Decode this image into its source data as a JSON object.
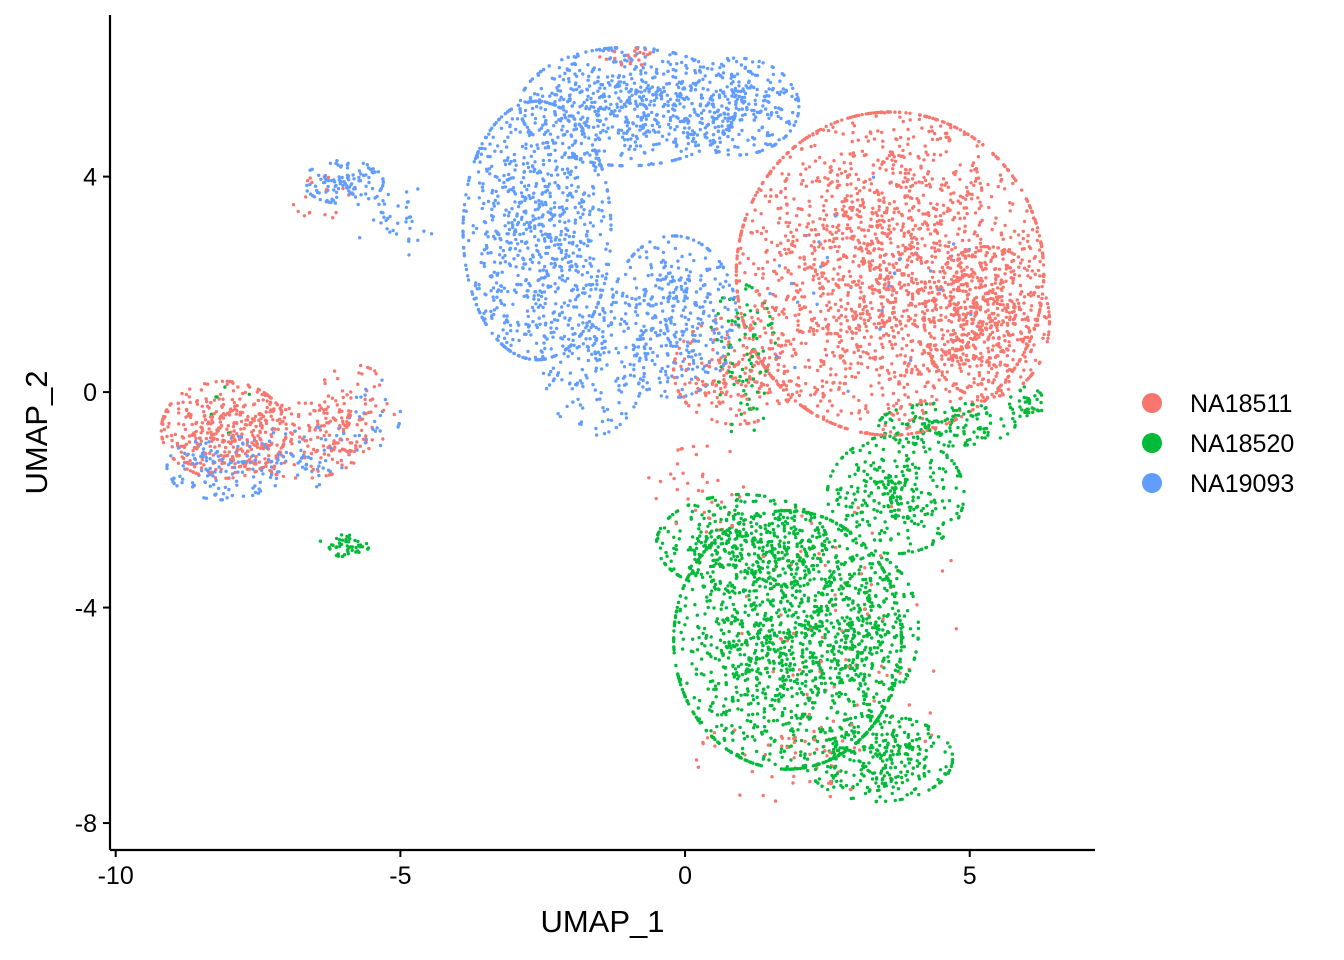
{
  "chart_data": {
    "type": "scatter",
    "title": "",
    "xlabel": "UMAP_1",
    "ylabel": "UMAP_2",
    "xlim": [
      -10.1,
      7.2
    ],
    "ylim": [
      -8.5,
      7.0
    ],
    "x_ticks": [
      -10,
      -5,
      0,
      5
    ],
    "x_tick_labels": [
      "-10",
      "-5",
      "0",
      "5"
    ],
    "y_ticks": [
      -8,
      -4,
      0,
      4
    ],
    "y_tick_labels": [
      "-8",
      "-4",
      "0",
      "4"
    ],
    "grid": false,
    "legend_position": "right",
    "series": [
      {
        "name": "NA18511",
        "color": "#F8766D",
        "regions": [
          {
            "cx": 3.6,
            "cy": 2.2,
            "rx": 2.7,
            "ry": 3.0,
            "n": 2000
          },
          {
            "cx": 5.3,
            "cy": 1.3,
            "rx": 1.1,
            "ry": 1.4,
            "n": 450
          },
          {
            "cx": 0.9,
            "cy": 0.4,
            "rx": 1.1,
            "ry": 1.0,
            "n": 220
          },
          {
            "cx": -8.1,
            "cy": -0.7,
            "rx": 1.1,
            "ry": 0.9,
            "n": 380
          },
          {
            "cx": -6.7,
            "cy": -0.9,
            "rx": 1.1,
            "ry": 0.7,
            "n": 160
          },
          {
            "cx": -5.8,
            "cy": -0.3,
            "rx": 0.7,
            "ry": 0.8,
            "n": 80
          },
          {
            "cx": -6.4,
            "cy": 3.6,
            "rx": 0.5,
            "ry": 0.4,
            "n": 18
          },
          {
            "cx": -1.0,
            "cy": 6.2,
            "rx": 0.5,
            "ry": 0.2,
            "n": 25
          },
          {
            "cx": 3.0,
            "cy": -4.5,
            "rx": 2.0,
            "ry": 2.5,
            "n": 80
          },
          {
            "cx": 1.8,
            "cy": -6.8,
            "rx": 1.6,
            "ry": 0.8,
            "n": 45
          },
          {
            "cx": 0.3,
            "cy": -1.8,
            "rx": 1.0,
            "ry": 0.8,
            "n": 40
          }
        ]
      },
      {
        "name": "NA18520",
        "color": "#00BA38",
        "regions": [
          {
            "cx": 1.8,
            "cy": -4.6,
            "rx": 2.0,
            "ry": 2.4,
            "n": 1350
          },
          {
            "cx": 1.0,
            "cy": -2.8,
            "rx": 1.5,
            "ry": 0.9,
            "n": 380
          },
          {
            "cx": 3.7,
            "cy": -1.9,
            "rx": 1.2,
            "ry": 1.1,
            "n": 320
          },
          {
            "cx": 3.2,
            "cy": -4.4,
            "rx": 0.9,
            "ry": 1.4,
            "n": 230
          },
          {
            "cx": 3.4,
            "cy": -6.8,
            "rx": 1.3,
            "ry": 0.8,
            "n": 320
          },
          {
            "cx": 4.6,
            "cy": -0.6,
            "rx": 1.2,
            "ry": 0.4,
            "n": 140
          },
          {
            "cx": 6.0,
            "cy": -0.2,
            "rx": 0.3,
            "ry": 0.3,
            "n": 40
          },
          {
            "cx": 1.0,
            "cy": 0.6,
            "rx": 0.6,
            "ry": 1.4,
            "n": 90
          },
          {
            "cx": -6.0,
            "cy": -2.85,
            "rx": 0.45,
            "ry": 0.2,
            "n": 50
          },
          {
            "cx": -8.0,
            "cy": -0.4,
            "rx": 0.5,
            "ry": 0.5,
            "n": 6
          }
        ]
      },
      {
        "name": "NA19093",
        "color": "#619CFF",
        "regions": [
          {
            "cx": -2.6,
            "cy": 3.0,
            "rx": 1.3,
            "ry": 2.4,
            "n": 900
          },
          {
            "cx": -1.0,
            "cy": 5.3,
            "rx": 1.9,
            "ry": 1.1,
            "n": 650
          },
          {
            "cx": 0.9,
            "cy": 5.3,
            "rx": 1.1,
            "ry": 0.9,
            "n": 280
          },
          {
            "cx": -0.2,
            "cy": 1.4,
            "rx": 1.1,
            "ry": 1.5,
            "n": 380
          },
          {
            "cx": -1.6,
            "cy": 0.6,
            "rx": 0.9,
            "ry": 1.4,
            "n": 180
          },
          {
            "cx": -6.0,
            "cy": 3.9,
            "rx": 0.7,
            "ry": 0.4,
            "n": 110
          },
          {
            "cx": -5.1,
            "cy": 3.2,
            "rx": 0.7,
            "ry": 0.7,
            "n": 40
          },
          {
            "cx": -8.1,
            "cy": -1.4,
            "rx": 1.0,
            "ry": 0.6,
            "n": 140
          },
          {
            "cx": -6.8,
            "cy": -1.2,
            "rx": 0.9,
            "ry": 0.6,
            "n": 60
          },
          {
            "cx": -5.6,
            "cy": -0.4,
            "rx": 0.6,
            "ry": 0.7,
            "n": 30
          },
          {
            "cx": 3.1,
            "cy": 2.0,
            "rx": 2.0,
            "ry": 2.0,
            "n": 30
          }
        ]
      }
    ]
  }
}
